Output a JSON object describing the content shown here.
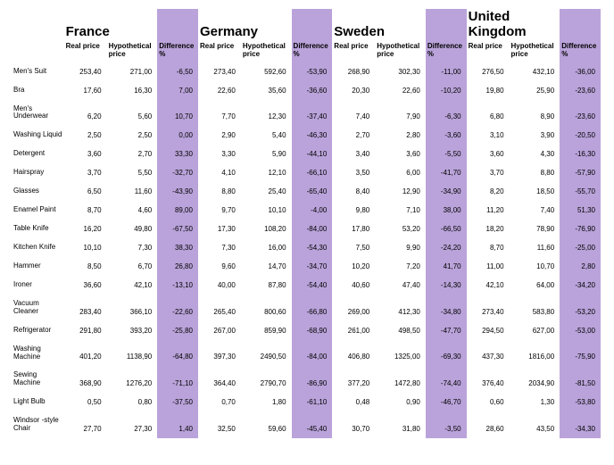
{
  "colors": {
    "diff_bg": "#baa3da",
    "text": "#000000",
    "background": "#ffffff"
  },
  "typography": {
    "country_header_fontsize": 15,
    "col_header_fontsize": 8,
    "cell_fontsize": 8,
    "font_family": "Arial"
  },
  "countries": [
    "France",
    "Germany",
    "Sweden",
    "United Kingdom"
  ],
  "column_labels": {
    "real": "Real price",
    "hyp": "Hypothetical price",
    "diff": "Difference %"
  },
  "rows": [
    {
      "product": "Men's Suit",
      "france": {
        "real": "253,40",
        "hyp": "271,00",
        "diff": "-6,50"
      },
      "germany": {
        "real": "273,40",
        "hyp": "592,60",
        "diff": "-53,90"
      },
      "sweden": {
        "real": "268,90",
        "hyp": "302,30",
        "diff": "-11,00"
      },
      "uk": {
        "real": "276,50",
        "hyp": "432,10",
        "diff": "-36,00"
      }
    },
    {
      "product": "Bra",
      "france": {
        "real": "17,60",
        "hyp": "16,30",
        "diff": "7,00"
      },
      "germany": {
        "real": "22,60",
        "hyp": "35,60",
        "diff": "-36,60"
      },
      "sweden": {
        "real": "20,30",
        "hyp": "22,60",
        "diff": "-10,20"
      },
      "uk": {
        "real": "19,80",
        "hyp": "25,90",
        "diff": "-23,60"
      }
    },
    {
      "product": "Men's Underwear",
      "france": {
        "real": "6,20",
        "hyp": "5,60",
        "diff": "10,70"
      },
      "germany": {
        "real": "7,70",
        "hyp": "12,30",
        "diff": "-37,40"
      },
      "sweden": {
        "real": "7,40",
        "hyp": "7,90",
        "diff": "-6,30"
      },
      "uk": {
        "real": "6,80",
        "hyp": "8,90",
        "diff": "-23,60"
      }
    },
    {
      "product": "Washing Liquid",
      "france": {
        "real": "2,50",
        "hyp": "2,50",
        "diff": "0,00"
      },
      "germany": {
        "real": "2,90",
        "hyp": "5,40",
        "diff": "-46,30"
      },
      "sweden": {
        "real": "2,70",
        "hyp": "2,80",
        "diff": "-3,60"
      },
      "uk": {
        "real": "3,10",
        "hyp": "3,90",
        "diff": "-20,50"
      }
    },
    {
      "product": "Detergent",
      "france": {
        "real": "3,60",
        "hyp": "2,70",
        "diff": "33,30"
      },
      "germany": {
        "real": "3,30",
        "hyp": "5,90",
        "diff": "-44,10"
      },
      "sweden": {
        "real": "3,40",
        "hyp": "3,60",
        "diff": "-5,50"
      },
      "uk": {
        "real": "3,60",
        "hyp": "4,30",
        "diff": "-16,30"
      }
    },
    {
      "product": "Hairspray",
      "france": {
        "real": "3,70",
        "hyp": "5,50",
        "diff": "-32,70"
      },
      "germany": {
        "real": "4,10",
        "hyp": "12,10",
        "diff": "-66,10"
      },
      "sweden": {
        "real": "3,50",
        "hyp": "6,00",
        "diff": "-41,70"
      },
      "uk": {
        "real": "3,70",
        "hyp": "8,80",
        "diff": "-57,90"
      }
    },
    {
      "product": "Glasses",
      "france": {
        "real": "6,50",
        "hyp": "11,60",
        "diff": "-43,90"
      },
      "germany": {
        "real": "8,80",
        "hyp": "25,40",
        "diff": "-65,40"
      },
      "sweden": {
        "real": "8,40",
        "hyp": "12,90",
        "diff": "-34,90"
      },
      "uk": {
        "real": "8,20",
        "hyp": "18,50",
        "diff": "-55,70"
      }
    },
    {
      "product": "Enamel Paint",
      "france": {
        "real": "8,70",
        "hyp": "4,60",
        "diff": "89,00"
      },
      "germany": {
        "real": "9,70",
        "hyp": "10,10",
        "diff": "-4,00"
      },
      "sweden": {
        "real": "9,80",
        "hyp": "7,10",
        "diff": "38,00"
      },
      "uk": {
        "real": "11,20",
        "hyp": "7,40",
        "diff": "51,30"
      }
    },
    {
      "product": "Table Knife",
      "france": {
        "real": "16,20",
        "hyp": "49,80",
        "diff": "-67,50"
      },
      "germany": {
        "real": "17,30",
        "hyp": "108,20",
        "diff": "-84,00"
      },
      "sweden": {
        "real": "17,80",
        "hyp": "53,20",
        "diff": "-66,50"
      },
      "uk": {
        "real": "18,20",
        "hyp": "78,90",
        "diff": "-76,90"
      }
    },
    {
      "product": "Kitchen Knife",
      "france": {
        "real": "10,10",
        "hyp": "7,30",
        "diff": "38,30"
      },
      "germany": {
        "real": "7,30",
        "hyp": "16,00",
        "diff": "-54,30"
      },
      "sweden": {
        "real": "7,50",
        "hyp": "9,90",
        "diff": "-24,20"
      },
      "uk": {
        "real": "8,70",
        "hyp": "11,60",
        "diff": "-25,00"
      }
    },
    {
      "product": "Hammer",
      "france": {
        "real": "8,50",
        "hyp": "6,70",
        "diff": "26,80"
      },
      "germany": {
        "real": "9,60",
        "hyp": "14,70",
        "diff": "-34,70"
      },
      "sweden": {
        "real": "10,20",
        "hyp": "7,20",
        "diff": "41,70"
      },
      "uk": {
        "real": "11,00",
        "hyp": "10,70",
        "diff": "2,80"
      }
    },
    {
      "product": "Ironer",
      "france": {
        "real": "36,60",
        "hyp": "42,10",
        "diff": "-13,10"
      },
      "germany": {
        "real": "40,00",
        "hyp": "87,80",
        "diff": "-54,40"
      },
      "sweden": {
        "real": "40,60",
        "hyp": "47,40",
        "diff": "-14,30"
      },
      "uk": {
        "real": "42,10",
        "hyp": "64,00",
        "diff": "-34,20"
      }
    },
    {
      "product": "Vacuum Cleaner",
      "france": {
        "real": "283,40",
        "hyp": "366,10",
        "diff": "-22,60"
      },
      "germany": {
        "real": "265,40",
        "hyp": "800,60",
        "diff": "-66,80"
      },
      "sweden": {
        "real": "269,00",
        "hyp": "412,30",
        "diff": "-34,80"
      },
      "uk": {
        "real": "273,40",
        "hyp": "583,80",
        "diff": "-53,20"
      }
    },
    {
      "product": "Refrigerator",
      "france": {
        "real": "291,80",
        "hyp": "393,20",
        "diff": "-25,80"
      },
      "germany": {
        "real": "267,00",
        "hyp": "859,90",
        "diff": "-68,90"
      },
      "sweden": {
        "real": "261,00",
        "hyp": "498,50",
        "diff": "-47,70"
      },
      "uk": {
        "real": "294,50",
        "hyp": "627,00",
        "diff": "-53,00"
      }
    },
    {
      "product": "Washing Machine",
      "france": {
        "real": "401,20",
        "hyp": "1138,90",
        "diff": "-64,80"
      },
      "germany": {
        "real": "397,30",
        "hyp": "2490,50",
        "diff": "-84,00"
      },
      "sweden": {
        "real": "406,80",
        "hyp": "1325,00",
        "diff": "-69,30"
      },
      "uk": {
        "real": "437,30",
        "hyp": "1816,00",
        "diff": "-75,90"
      }
    },
    {
      "product": "Sewing Machine",
      "france": {
        "real": "368,90",
        "hyp": "1276,20",
        "diff": "-71,10"
      },
      "germany": {
        "real": "364,40",
        "hyp": "2790,70",
        "diff": "-86,90"
      },
      "sweden": {
        "real": "377,20",
        "hyp": "1472,80",
        "diff": "-74,40"
      },
      "uk": {
        "real": "376,40",
        "hyp": "2034,90",
        "diff": "-81,50"
      }
    },
    {
      "product": "Light Bulb",
      "france": {
        "real": "0,50",
        "hyp": "0,80",
        "diff": "-37,50"
      },
      "germany": {
        "real": "0,70",
        "hyp": "1,80",
        "diff": "-61,10"
      },
      "sweden": {
        "real": "0,48",
        "hyp": "0,90",
        "diff": "-46,70"
      },
      "uk": {
        "real": "0,60",
        "hyp": "1,30",
        "diff": "-53,80"
      }
    },
    {
      "product": "Windsor -style Chair",
      "france": {
        "real": "27,70",
        "hyp": "27,30",
        "diff": "1,40"
      },
      "germany": {
        "real": "32,50",
        "hyp": "59,60",
        "diff": "-45,40"
      },
      "sweden": {
        "real": "30,70",
        "hyp": "31,80",
        "diff": "-3,50"
      },
      "uk": {
        "real": "28,60",
        "hyp": "43,50",
        "diff": "-34,30"
      }
    }
  ]
}
